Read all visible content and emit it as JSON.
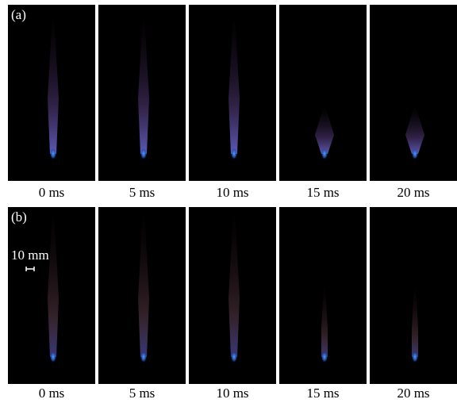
{
  "panels": [
    {
      "label": "(a)",
      "frames": [
        "0 ms",
        "5 ms",
        "10 ms",
        "15 ms",
        "20 ms"
      ]
    },
    {
      "label": "(b)",
      "frames": [
        "0 ms",
        "5 ms",
        "10 ms",
        "15 ms",
        "20 ms"
      ]
    }
  ],
  "scale_bar": "10 mm"
}
